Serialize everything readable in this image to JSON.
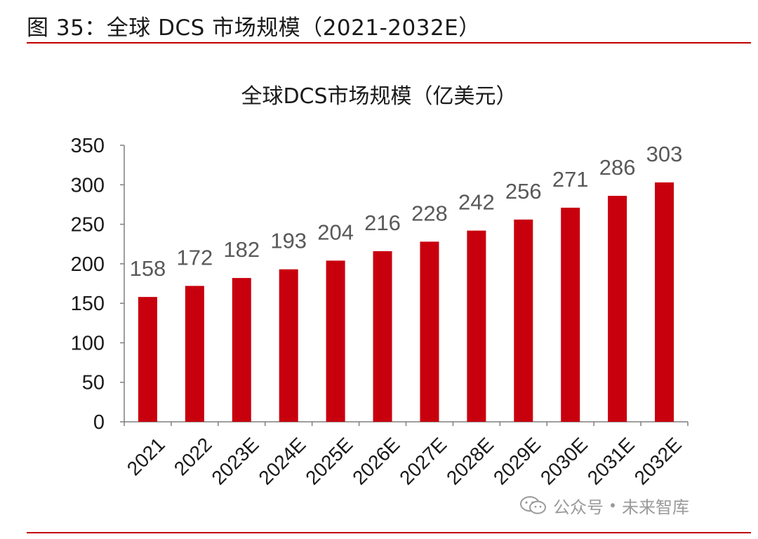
{
  "figure_caption": "图 35：全球 DCS 市场规模（2021-2032E）",
  "watermark": {
    "platform": "公众号",
    "name": "未来智库",
    "icon": "wechat-icon"
  },
  "colors": {
    "bar": "#c8000e",
    "rule": "#c00000",
    "axis": "#7f7f7f",
    "data_label": "#595959"
  },
  "chart_data": {
    "type": "bar",
    "title": "全球DCS市场规模（亿美元）",
    "xlabel": "",
    "ylabel": "",
    "categories": [
      "2021",
      "2022",
      "2023E",
      "2024E",
      "2025E",
      "2026E",
      "2027E",
      "2028E",
      "2029E",
      "2030E",
      "2031E",
      "2032E"
    ],
    "series": [
      {
        "values": [
          158,
          172,
          182,
          193,
          204,
          216,
          228,
          242,
          256,
          271,
          286,
          303
        ]
      }
    ],
    "ylim": [
      0,
      350
    ],
    "yticks": [
      0,
      50,
      100,
      150,
      200,
      250,
      300,
      350
    ],
    "data_labels": true,
    "grid": false,
    "legend": "none"
  }
}
